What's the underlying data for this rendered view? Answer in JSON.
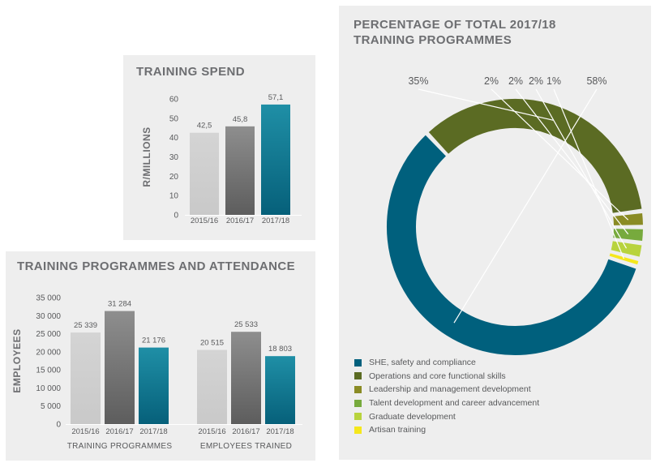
{
  "training_spend": {
    "title": "TRAINING SPEND",
    "ylabel": "R/MILLIONS"
  },
  "programmes": {
    "title": "TRAINING PROGRAMMES AND ATTENDANCE",
    "ylabel": "EMPLOYEES"
  },
  "donut": {
    "title_line1": "PERCENTAGE OF TOTAL 2017/18",
    "title_line2": "TRAINING PROGRAMMES"
  },
  "chart_data": [
    {
      "type": "bar",
      "title": "TRAINING SPEND",
      "ylabel": "R/MILLIONS",
      "categories": [
        "2015/16",
        "2016/17",
        "2017/18"
      ],
      "values": [
        42.5,
        45.8,
        57.1
      ],
      "value_labels": [
        "42,5",
        "45,8",
        "57,1"
      ],
      "yticks": [
        "0",
        "10",
        "20",
        "30",
        "40",
        "50",
        "60"
      ],
      "ylim": [
        0,
        60
      ],
      "colors": [
        "#c9c9c9",
        "#8e8e8e",
        "#1f8fa6"
      ]
    },
    {
      "type": "bar",
      "title": "TRAINING PROGRAMMES AND ATTENDANCE",
      "ylabel": "EMPLOYEES",
      "groups": [
        {
          "name": "TRAINING PROGRAMMES",
          "categories": [
            "2015/16",
            "2016/17",
            "2017/18"
          ],
          "values": [
            25339,
            31284,
            21176
          ],
          "value_labels": [
            "25 339",
            "31 284",
            "21 176"
          ]
        },
        {
          "name": "EMPLOYEES TRAINED",
          "categories": [
            "2015/16",
            "2016/17",
            "2017/18"
          ],
          "values": [
            20515,
            25533,
            18803
          ],
          "value_labels": [
            "20 515",
            "25 533",
            "18 803"
          ]
        }
      ],
      "yticks": [
        "0",
        "5 000",
        "10 000",
        "15 000",
        "20 000",
        "25 000",
        "30 000",
        "35 000"
      ],
      "ylim": [
        0,
        35000
      ],
      "colors": [
        "#c9c9c9",
        "#8e8e8e",
        "#1f8fa6"
      ]
    },
    {
      "type": "pie",
      "title": "PERCENTAGE OF TOTAL 2017/18 TRAINING PROGRAMMES",
      "slices": [
        {
          "name": "SHE, safety and compliance",
          "value": 58,
          "label": "58%",
          "color": "#00607d"
        },
        {
          "name": "Operations and core functional skills",
          "value": 35,
          "label": "35%",
          "color": "#5b6b23"
        },
        {
          "name": "Leadership and management development",
          "value": 2,
          "label": "2%",
          "color": "#8a8b24"
        },
        {
          "name": "Talent development and career advancement",
          "value": 2,
          "label": "2%",
          "color": "#77aa3d"
        },
        {
          "name": "Graduate development",
          "value": 2,
          "label": "2%",
          "color": "#b8d33d"
        },
        {
          "name": "Artisan training",
          "value": 1,
          "label": "1%",
          "color": "#f5e71c"
        }
      ]
    }
  ]
}
